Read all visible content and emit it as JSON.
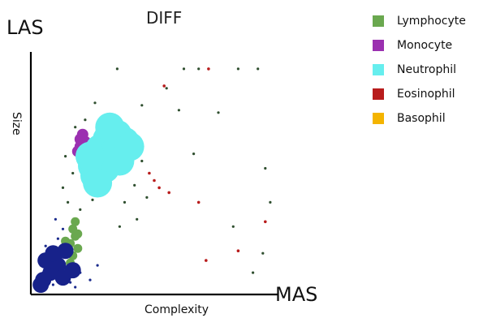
{
  "chart_data": {
    "type": "scatter",
    "title": "DIFF",
    "ylabel_short": "LAS",
    "ylabel": "Size",
    "xlabel_short": "MAS",
    "xlabel": "Complexity",
    "xlim": [
      0,
      100
    ],
    "ylim": [
      0,
      100
    ],
    "grid": false,
    "legend_position": "top-right",
    "series": [
      {
        "name": "Lymphocyte",
        "color": "#6aa84f",
        "points": [
          [
            16,
            21
          ],
          [
            17,
            16
          ],
          [
            18,
            24
          ],
          [
            15,
            18
          ],
          [
            17,
            27
          ],
          [
            19,
            19
          ],
          [
            16,
            13
          ],
          [
            18,
            30
          ],
          [
            14,
            22
          ],
          [
            19,
            25
          ]
        ]
      },
      {
        "name": "Monocyte",
        "color": "#9b30b0",
        "points": [
          [
            20,
            61
          ],
          [
            21,
            57
          ],
          [
            22,
            63
          ],
          [
            19,
            59
          ],
          [
            21,
            66
          ],
          [
            23,
            55
          ],
          [
            20,
            64
          ],
          [
            22,
            58
          ]
        ]
      },
      {
        "name": "Neutrophil",
        "color": "#66eeee",
        "points": [
          [
            25,
            53
          ],
          [
            28,
            60
          ],
          [
            31,
            64
          ],
          [
            35,
            66
          ],
          [
            38,
            63
          ],
          [
            33,
            58
          ],
          [
            29,
            55
          ],
          [
            26,
            49
          ],
          [
            37,
            59
          ],
          [
            40,
            61
          ],
          [
            30,
            52
          ],
          [
            24,
            57
          ],
          [
            32,
            69
          ],
          [
            36,
            55
          ],
          [
            27,
            46
          ]
        ]
      },
      {
        "name": "Eosinophil",
        "color": "#b81c1c",
        "points": [
          [
            72,
            93
          ],
          [
            48,
            50
          ],
          [
            50,
            47
          ],
          [
            52,
            44
          ],
          [
            56,
            42
          ],
          [
            71,
            14
          ],
          [
            84,
            18
          ],
          [
            95,
            30
          ],
          [
            68,
            38
          ],
          [
            54,
            86
          ]
        ]
      },
      {
        "name": "Basophil",
        "color": "#f4b400",
        "points": []
      }
    ],
    "other_events": [
      {
        "color": "#1a2a8c",
        "points": [
          [
            5,
            9
          ],
          [
            7,
            13
          ],
          [
            9,
            18
          ],
          [
            11,
            23
          ],
          [
            6,
            6
          ],
          [
            12,
            15
          ],
          [
            8,
            10
          ],
          [
            13,
            27
          ],
          [
            10,
            31
          ],
          [
            4,
            12
          ],
          [
            14,
            8
          ],
          [
            6,
            20
          ],
          [
            16,
            5
          ],
          [
            20,
            9
          ],
          [
            24,
            6
          ],
          [
            18,
            3
          ],
          [
            9,
            4
          ],
          [
            27,
            12
          ]
        ]
      },
      {
        "color": "#2f4f2f",
        "points": [
          [
            35,
            93
          ],
          [
            62,
            93
          ],
          [
            68,
            93
          ],
          [
            84,
            93
          ],
          [
            92,
            93
          ],
          [
            55,
            85
          ],
          [
            26,
            79
          ],
          [
            45,
            78
          ],
          [
            60,
            76
          ],
          [
            17,
            50
          ],
          [
            13,
            44
          ],
          [
            15,
            38
          ],
          [
            20,
            35
          ],
          [
            25,
            39
          ],
          [
            38,
            38
          ],
          [
            42,
            45
          ],
          [
            45,
            55
          ],
          [
            47,
            40
          ],
          [
            95,
            52
          ],
          [
            97,
            38
          ],
          [
            82,
            28
          ],
          [
            90,
            9
          ],
          [
            94,
            17
          ],
          [
            29,
            70
          ],
          [
            18,
            69
          ],
          [
            22,
            72
          ],
          [
            14,
            57
          ],
          [
            43,
            31
          ],
          [
            36,
            28
          ],
          [
            66,
            58
          ],
          [
            76,
            75
          ]
        ]
      }
    ]
  }
}
